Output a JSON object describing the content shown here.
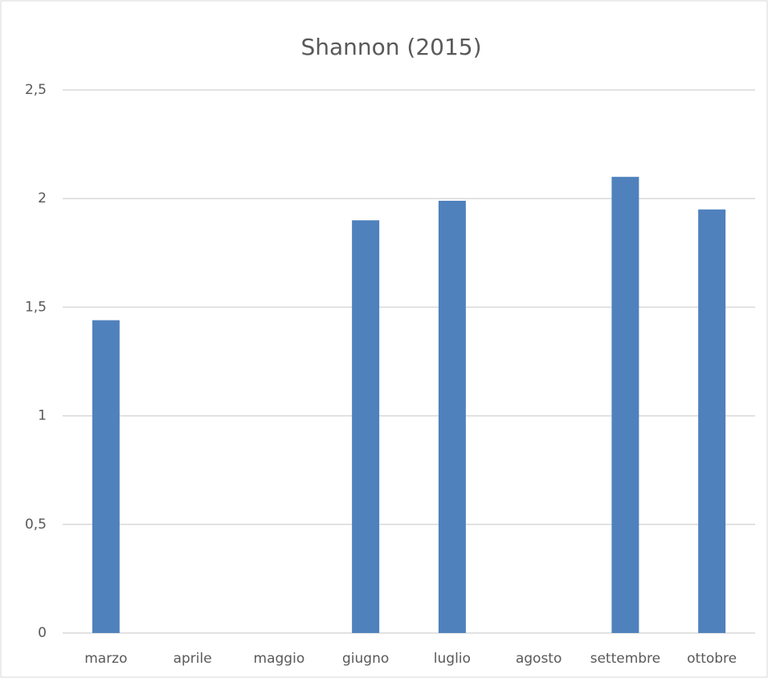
{
  "chart_data": {
    "type": "bar",
    "title": "Shannon (2015)",
    "categories": [
      "marzo",
      "aprile",
      "maggio",
      "giugno",
      "luglio",
      "agosto",
      "settembre",
      "ottobre"
    ],
    "values": [
      1.44,
      null,
      null,
      1.9,
      1.99,
      null,
      2.1,
      1.95
    ],
    "color": "#4f81bd",
    "ylim": [
      0,
      2.5
    ],
    "yticks": [
      0,
      {
        "value": 0.5,
        "label": "0,5"
      },
      1,
      {
        "value": 1.5,
        "label": "1,5"
      },
      2,
      {
        "value": 2.5,
        "label": "2,5"
      }
    ],
    "grid": true
  }
}
